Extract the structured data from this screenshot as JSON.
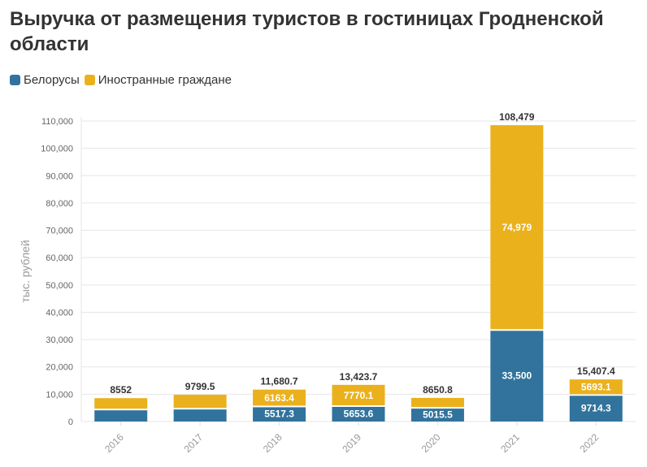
{
  "chart_data": {
    "type": "bar",
    "stacked": true,
    "title": "Выручка от размещения туристов в гостиницах Гродненской области",
    "ylabel": "тыс. рублей",
    "xlabel": "",
    "ylim": [
      0,
      110000
    ],
    "yticks": [
      0,
      10000,
      20000,
      30000,
      40000,
      50000,
      60000,
      70000,
      80000,
      90000,
      100000,
      110000
    ],
    "ytick_labels": [
      "0",
      "10,000",
      "20,000",
      "30,000",
      "40,000",
      "50,000",
      "60,000",
      "70,000",
      "80,000",
      "90,000",
      "100,000",
      "110,000"
    ],
    "grid": true,
    "legend": "top-left",
    "categories": [
      "2016",
      "2017",
      "2018",
      "2019",
      "2020",
      "2021",
      "2022"
    ],
    "series": [
      {
        "name": "Белорусы",
        "color": "#31739c",
        "values": [
          4400,
          4700,
          5517.3,
          5653.6,
          5015.5,
          33500,
          9714.3
        ],
        "labels": [
          "",
          "",
          "5517.3",
          "5653.6",
          "5015.5",
          "33,500",
          "9714.3"
        ]
      },
      {
        "name": "Иностранные граждане",
        "color": "#ebb11c",
        "values": [
          4152,
          5099.5,
          6163.4,
          7770.1,
          3635.3,
          74979,
          5693.1
        ],
        "labels": [
          "",
          "",
          "6163.4",
          "7770.1",
          "",
          "74,979",
          "5693.1"
        ]
      }
    ],
    "totals": [
      8552,
      9799.5,
      11680.7,
      13423.7,
      8650.8,
      108479,
      15407.4
    ],
    "total_labels": [
      "8552",
      "9799.5",
      "11,680.7",
      "13,423.7",
      "8650.8",
      "108,479",
      "15,407.4"
    ]
  }
}
